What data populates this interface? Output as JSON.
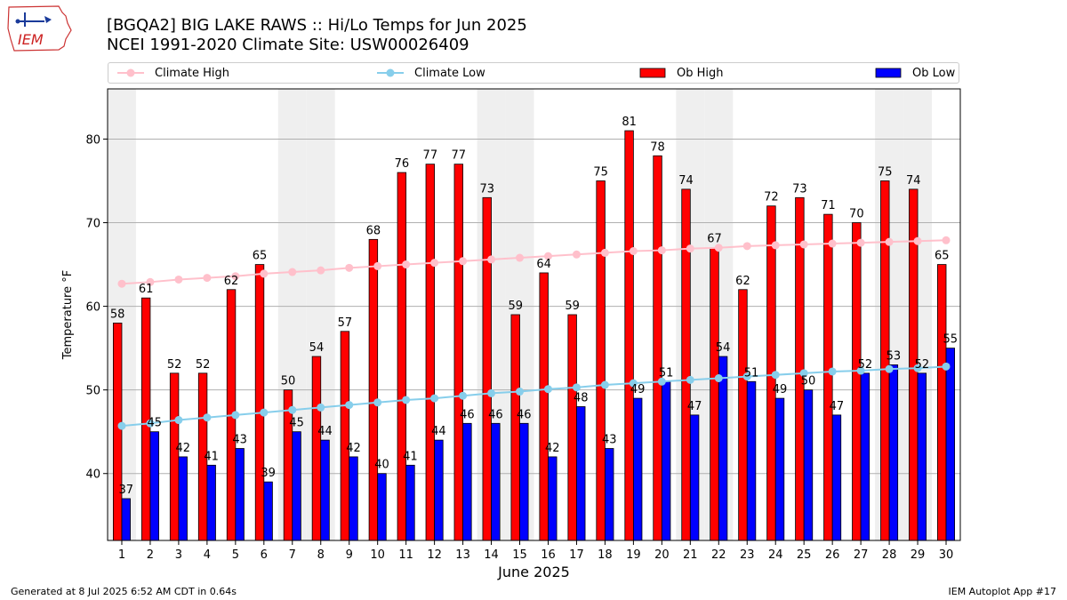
{
  "header": {
    "title": "[BGQA2] BIG LAKE RAWS :: Hi/Lo Temps for Jun 2025",
    "subtitle": "NCEI 1991-2020 Climate Site: USW00026409",
    "logo_text": "IEM"
  },
  "legend": {
    "items": [
      {
        "label": "Climate High",
        "kind": "line",
        "color": "#ffc0cb"
      },
      {
        "label": "Climate Low",
        "kind": "line",
        "color": "#87ceeb"
      },
      {
        "label": "Ob High",
        "kind": "bar",
        "color": "#ff0000"
      },
      {
        "label": "Ob Low",
        "kind": "bar",
        "color": "#0000ff"
      }
    ]
  },
  "footer": {
    "generated": "Generated at 8 Jul 2025 6:52 AM CDT in 0.64s",
    "app": "IEM Autoplot App #17"
  },
  "chart_data": {
    "type": "bar",
    "xlabel": "June 2025",
    "ylabel": "Temperature °F",
    "ylim": [
      32,
      86
    ],
    "yticks": [
      40,
      50,
      60,
      70,
      80
    ],
    "grid": true,
    "legend_position": "top",
    "categories": [
      1,
      2,
      3,
      4,
      5,
      6,
      7,
      8,
      9,
      10,
      11,
      12,
      13,
      14,
      15,
      16,
      17,
      18,
      19,
      20,
      21,
      22,
      23,
      24,
      25,
      26,
      27,
      28,
      29,
      30
    ],
    "shaded_days": [
      1,
      7,
      8,
      14,
      15,
      21,
      22,
      28,
      29
    ],
    "series": [
      {
        "name": "Ob High",
        "kind": "bar",
        "color": "#ff0000",
        "values": [
          58,
          61,
          52,
          52,
          62,
          65,
          50,
          54,
          57,
          68,
          76,
          77,
          77,
          73,
          59,
          64,
          59,
          75,
          81,
          78,
          74,
          67,
          62,
          72,
          73,
          71,
          70,
          75,
          74,
          65
        ]
      },
      {
        "name": "Ob Low",
        "kind": "bar",
        "color": "#0000ff",
        "values": [
          37,
          45,
          42,
          41,
          43,
          39,
          45,
          44,
          42,
          40,
          41,
          44,
          46,
          46,
          46,
          42,
          48,
          43,
          49,
          51,
          47,
          54,
          51,
          49,
          50,
          47,
          52,
          53,
          52,
          55
        ]
      },
      {
        "name": "Climate High",
        "kind": "line",
        "color": "#ffc0cb",
        "values": [
          62.7,
          62.9,
          63.2,
          63.4,
          63.6,
          63.9,
          64.1,
          64.3,
          64.6,
          64.8,
          65.0,
          65.2,
          65.4,
          65.6,
          65.8,
          66.0,
          66.2,
          66.4,
          66.6,
          66.7,
          66.9,
          67.0,
          67.2,
          67.3,
          67.4,
          67.5,
          67.6,
          67.7,
          67.8,
          67.9
        ]
      },
      {
        "name": "Climate Low",
        "kind": "line",
        "color": "#87ceeb",
        "values": [
          45.7,
          46.0,
          46.4,
          46.7,
          47.0,
          47.3,
          47.6,
          47.9,
          48.2,
          48.5,
          48.8,
          49.0,
          49.3,
          49.6,
          49.8,
          50.1,
          50.3,
          50.6,
          50.8,
          51.0,
          51.2,
          51.4,
          51.6,
          51.8,
          52.0,
          52.2,
          52.3,
          52.5,
          52.6,
          52.8
        ]
      }
    ]
  }
}
